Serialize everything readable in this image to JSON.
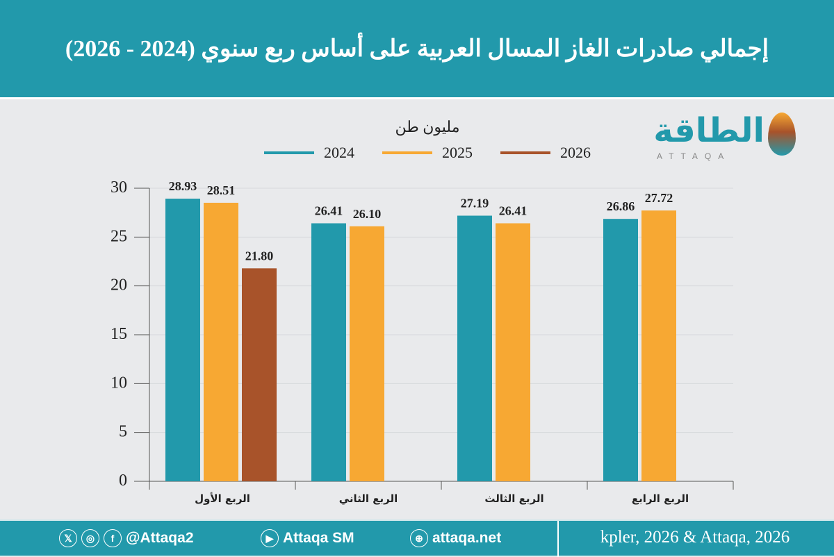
{
  "title": "إجمالي صادرات الغاز المسال العربية على أساس ربع سنوي (2024 - 2026)",
  "logo": {
    "text": "الطاقة",
    "sub": "ATTAQA"
  },
  "chart_data": {
    "type": "bar",
    "ylabel": "مليون طن",
    "categories": [
      "الربع الأول",
      "الربع الثاني",
      "الربع الثالث",
      "الربع الرابع"
    ],
    "series": [
      {
        "name": "2024",
        "color": "#2299ab",
        "values": [
          28.93,
          26.41,
          27.19,
          26.86
        ]
      },
      {
        "name": "2025",
        "color": "#f7a833",
        "values": [
          28.51,
          26.1,
          26.41,
          27.72
        ]
      },
      {
        "name": "2026",
        "color": "#a8532a",
        "values": [
          21.8,
          null,
          null,
          null
        ]
      }
    ],
    "ylim": [
      0,
      30
    ],
    "yticks": [
      0,
      5,
      10,
      15,
      20,
      25,
      30
    ],
    "grid": true,
    "legend": "top"
  },
  "footer": {
    "handle": "@Attaqa2",
    "youtube": "Attaqa SM",
    "site": "attaqa.net",
    "source": "kpler, 2026 & Attaqa, 2026"
  }
}
